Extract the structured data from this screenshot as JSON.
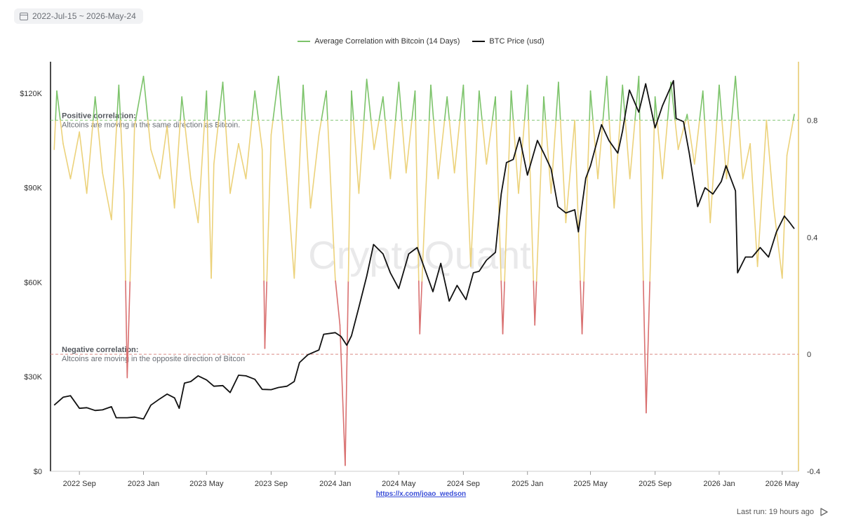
{
  "toolbar": {
    "date_range": "2022-Jul-15 ~ 2026-May-24",
    "calendar_icon": "calendar-icon"
  },
  "footer": {
    "source_link": "https://x.com/joao_wedson",
    "last_run": "Last run: 19 hours ago",
    "play_icon": "play-icon"
  },
  "watermark": "CryptoQuant",
  "colors": {
    "correlation_positive": "#7cc36a",
    "correlation_neutral": "#ecd27b",
    "correlation_negative": "#d97070",
    "btc_price": "#111111",
    "positive_line": "#86c77a",
    "negative_line": "#d98a85",
    "right_axis": "#e6c96a"
  },
  "chart_data": {
    "type": "line",
    "legend_position": "top-center",
    "grid": false,
    "series": [
      {
        "name": "Average Correlation with Bitcoin (14 Days)",
        "axis": "right",
        "x": [
          "2022-07-15",
          "2022-07-20",
          "2022-08-01",
          "2022-08-15",
          "2022-09-01",
          "2022-09-15",
          "2022-10-01",
          "2022-10-15",
          "2022-11-01",
          "2022-11-15",
          "2022-11-25",
          "2022-12-01",
          "2022-12-15",
          "2023-01-01",
          "2023-01-15",
          "2023-02-01",
          "2023-02-15",
          "2023-03-01",
          "2023-03-15",
          "2023-04-01",
          "2023-04-15",
          "2023-05-01",
          "2023-05-10",
          "2023-05-15",
          "2023-06-01",
          "2023-06-15",
          "2023-07-01",
          "2023-07-15",
          "2023-08-01",
          "2023-08-15",
          "2023-08-20",
          "2023-09-01",
          "2023-09-15",
          "2023-10-01",
          "2023-10-15",
          "2023-11-01",
          "2023-11-15",
          "2023-12-01",
          "2023-12-15",
          "2024-01-01",
          "2024-01-10",
          "2024-01-20",
          "2024-02-01",
          "2024-02-15",
          "2024-03-01",
          "2024-03-15",
          "2024-04-01",
          "2024-04-15",
          "2024-05-01",
          "2024-05-15",
          "2024-06-01",
          "2024-06-10",
          "2024-06-20",
          "2024-07-01",
          "2024-07-15",
          "2024-08-01",
          "2024-08-15",
          "2024-09-01",
          "2024-09-15",
          "2024-10-01",
          "2024-10-15",
          "2024-11-01",
          "2024-11-15",
          "2024-12-01",
          "2024-12-15",
          "2025-01-01",
          "2025-01-15",
          "2025-02-01",
          "2025-02-15",
          "2025-03-01",
          "2025-03-15",
          "2025-04-01",
          "2025-04-15",
          "2025-05-01",
          "2025-05-15",
          "2025-06-01",
          "2025-06-15",
          "2025-07-01",
          "2025-07-15",
          "2025-08-01",
          "2025-08-15",
          "2025-09-01",
          "2025-09-15",
          "2025-10-01",
          "2025-10-15",
          "2025-11-01",
          "2025-11-15",
          "2025-12-01",
          "2025-12-15",
          "2026-01-01",
          "2026-01-15",
          "2026-02-01",
          "2026-02-15",
          "2026-03-01",
          "2026-03-15",
          "2026-04-01",
          "2026-04-15",
          "2026-05-01",
          "2026-05-10",
          "2026-05-24"
        ],
        "values": [
          0.7,
          0.9,
          0.72,
          0.6,
          0.76,
          0.55,
          0.88,
          0.62,
          0.46,
          0.92,
          0.55,
          -0.08,
          0.78,
          0.95,
          0.7,
          0.6,
          0.78,
          0.5,
          0.88,
          0.6,
          0.45,
          0.9,
          0.26,
          0.65,
          0.93,
          0.55,
          0.72,
          0.6,
          0.9,
          0.7,
          0.02,
          0.75,
          0.95,
          0.6,
          0.26,
          0.92,
          0.5,
          0.75,
          0.9,
          0.26,
          0.1,
          -0.38,
          0.9,
          0.55,
          0.94,
          0.7,
          0.88,
          0.6,
          0.93,
          0.62,
          0.9,
          0.07,
          0.5,
          0.92,
          0.6,
          0.88,
          0.62,
          0.92,
          0.3,
          0.9,
          0.65,
          0.88,
          0.07,
          0.9,
          0.55,
          0.92,
          0.1,
          0.88,
          0.55,
          0.93,
          0.45,
          0.8,
          0.07,
          0.9,
          0.6,
          0.95,
          0.5,
          0.92,
          0.6,
          0.95,
          -0.2,
          0.88,
          0.6,
          0.93,
          0.7,
          0.82,
          0.65,
          0.9,
          0.45,
          0.92,
          0.6,
          0.95,
          0.6,
          0.72,
          0.3,
          0.8,
          0.5,
          0.26,
          0.68,
          0.82
        ]
      },
      {
        "name": "BTC Price (usd)",
        "axis": "left",
        "x": [
          "2022-07-15",
          "2022-08-01",
          "2022-08-15",
          "2022-09-01",
          "2022-09-15",
          "2022-10-01",
          "2022-10-15",
          "2022-11-01",
          "2022-11-10",
          "2022-12-01",
          "2022-12-15",
          "2023-01-01",
          "2023-01-15",
          "2023-02-01",
          "2023-02-15",
          "2023-03-01",
          "2023-03-10",
          "2023-03-20",
          "2023-04-01",
          "2023-04-15",
          "2023-05-01",
          "2023-05-15",
          "2023-06-01",
          "2023-06-15",
          "2023-07-01",
          "2023-07-15",
          "2023-08-01",
          "2023-08-15",
          "2023-09-01",
          "2023-09-15",
          "2023-10-01",
          "2023-10-15",
          "2023-10-25",
          "2023-11-10",
          "2023-12-01",
          "2023-12-10",
          "2024-01-01",
          "2024-01-12",
          "2024-01-23",
          "2024-02-01",
          "2024-02-15",
          "2024-03-01",
          "2024-03-14",
          "2024-04-01",
          "2024-04-15",
          "2024-05-01",
          "2024-05-20",
          "2024-06-05",
          "2024-06-20",
          "2024-07-05",
          "2024-07-20",
          "2024-08-05",
          "2024-08-20",
          "2024-09-06",
          "2024-09-20",
          "2024-10-01",
          "2024-10-15",
          "2024-11-01",
          "2024-11-12",
          "2024-11-22",
          "2024-12-05",
          "2024-12-17",
          "2025-01-01",
          "2025-01-20",
          "2025-02-01",
          "2025-02-15",
          "2025-02-28",
          "2025-03-15",
          "2025-04-01",
          "2025-04-08",
          "2025-04-22",
          "2025-05-01",
          "2025-05-22",
          "2025-06-05",
          "2025-06-22",
          "2025-07-01",
          "2025-07-14",
          "2025-08-01",
          "2025-08-14",
          "2025-09-01",
          "2025-09-15",
          "2025-10-06",
          "2025-10-11",
          "2025-10-25",
          "2025-11-05",
          "2025-11-21",
          "2025-12-05",
          "2025-12-20",
          "2026-01-05",
          "2026-01-14",
          "2026-02-01",
          "2026-02-05",
          "2026-02-20",
          "2026-03-05",
          "2026-03-20",
          "2026-04-05",
          "2026-04-20",
          "2026-05-05",
          "2026-05-15",
          "2026-05-24"
        ],
        "values": [
          21000,
          23500,
          24000,
          20000,
          20200,
          19300,
          19500,
          20500,
          17000,
          17000,
          17200,
          16600,
          21000,
          23000,
          24500,
          23300,
          20000,
          28000,
          28500,
          30300,
          29000,
          27000,
          27200,
          25000,
          30500,
          30300,
          29200,
          26000,
          25900,
          26600,
          27000,
          28500,
          34500,
          37000,
          38500,
          43500,
          44000,
          42800,
          40000,
          43000,
          52000,
          62000,
          72000,
          69000,
          63000,
          58000,
          69000,
          71000,
          64000,
          57000,
          66000,
          54000,
          59000,
          54500,
          63000,
          63500,
          67000,
          69500,
          88000,
          98000,
          99000,
          106000,
          94000,
          105000,
          101000,
          96000,
          84000,
          82000,
          83000,
          76000,
          93000,
          97000,
          110000,
          105000,
          101000,
          108000,
          121000,
          114000,
          123000,
          109000,
          116000,
          124000,
          112000,
          111000,
          101000,
          84000,
          90000,
          88000,
          92000,
          97000,
          89000,
          63000,
          68000,
          68000,
          71000,
          68000,
          76000,
          81000,
          79000,
          77000
        ]
      }
    ],
    "x_ticks": [
      "2022 Sep",
      "2023 Jan",
      "2023 May",
      "2023 Sep",
      "2024 Jan",
      "2024 May",
      "2024 Sep",
      "2025 Jan",
      "2025 May",
      "2025 Sep",
      "2026 Jan",
      "2026 May"
    ],
    "y_left": {
      "ticks": [
        "$0",
        "$30K",
        "$60K",
        "$90K",
        "$120K"
      ],
      "range": [
        0,
        130000
      ]
    },
    "y_right": {
      "ticks": [
        "-0.4",
        "0",
        "0.4",
        "0.8"
      ],
      "range": [
        -0.4,
        1.0
      ]
    },
    "annotations": [
      {
        "value": 0.8,
        "title": "Positive correlation:",
        "text": "Altcoins are moving in the same direction as Bitcoin."
      },
      {
        "value": 0,
        "title": "Negative correlation:",
        "text": "Altcoins are moving in the opposite direction of Bitcon"
      }
    ]
  }
}
